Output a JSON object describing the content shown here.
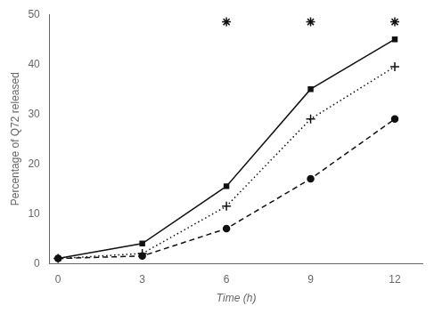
{
  "chart_data": {
    "type": "line",
    "xlabel": "Time (h)",
    "ylabel": "Percentage of Q72 released",
    "xlim": [
      -0.3,
      13
    ],
    "ylim": [
      0,
      50
    ],
    "xticks": [
      0,
      3,
      6,
      9,
      12
    ],
    "yticks": [
      0,
      10,
      20,
      30,
      40,
      50
    ],
    "grid": false,
    "series": [
      {
        "color": "#111111",
        "marker": "square",
        "line_style": "solid",
        "x": [
          0,
          3,
          6,
          9,
          12
        ],
        "values": [
          1,
          4,
          15.5,
          35,
          45
        ]
      },
      {
        "color": "#111111",
        "marker": "plus",
        "line_style": "dotted",
        "x": [
          0,
          3,
          6,
          9,
          12
        ],
        "values": [
          1,
          2,
          11.5,
          29,
          39.5
        ]
      },
      {
        "color": "#111111",
        "marker": "circle",
        "line_style": "dashed",
        "x": [
          0,
          3,
          6,
          9,
          12
        ],
        "values": [
          1,
          1.5,
          7,
          17,
          29
        ]
      },
      {
        "type": "scatter",
        "color": "#111111",
        "marker": "asterisk",
        "x": [
          6,
          9,
          12
        ],
        "values": [
          48.5,
          48.5,
          48.5
        ]
      }
    ]
  }
}
